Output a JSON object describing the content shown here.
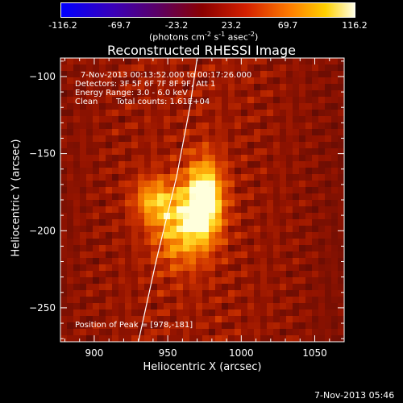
{
  "colorbar": {
    "ticks": [
      "-116.2",
      "-69.7",
      "-23.2",
      "23.2",
      "69.7",
      "116.2"
    ],
    "units_prefix": "(photons cm",
    "units_exp1": "-2",
    "units_mid": " s",
    "units_exp2": "-1",
    "units_mid2": " asec",
    "units_exp3": "-2",
    "units_suffix": ")"
  },
  "chart_data": {
    "type": "heatmap",
    "title": "Reconstructed RHESSI Image",
    "xlabel": "Heliocentric X (arcsec)",
    "ylabel": "Heliocentric Y (arcsec)",
    "xlim": [
      877,
      1070
    ],
    "ylim": [
      -272,
      -88
    ],
    "xticks": [
      900,
      950,
      1000,
      1050
    ],
    "yticks": [
      -100,
      -150,
      -200,
      -250
    ],
    "colorbar_range": [
      -116.2,
      116.2
    ],
    "grid": false,
    "peak_position": [
      978,
      -181
    ],
    "limb_curve": [
      [
        930,
        -272
      ],
      [
        942,
        -220
      ],
      [
        956,
        -165
      ],
      [
        965,
        -120
      ],
      [
        970,
        -88
      ]
    ],
    "annotations": {
      "time_range": "7-Nov-2013 00:13:52.000 to 00:17:26.000",
      "detectors": "Detectors: 3F 5F 6F 7F 8F 9F, Att 1",
      "energy": "Energy Range: 3.0 - 6.0 keV",
      "clean": "Clean",
      "counts": "Total counts: 1.61E+04",
      "peak": "Position of Peak = [978,-181]"
    },
    "sources": [
      {
        "x": 975,
        "y": -180,
        "sigma_x": 9,
        "sigma_y": 18,
        "amp": 1.0
      },
      {
        "x": 958,
        "y": -198,
        "sigma_x": 13,
        "sigma_y": 18,
        "amp": 0.6
      },
      {
        "x": 940,
        "y": -180,
        "sigma_x": 10,
        "sigma_y": 10,
        "amp": 0.5
      }
    ]
  },
  "footer": {
    "timestamp": "7-Nov-2013 05:46"
  }
}
